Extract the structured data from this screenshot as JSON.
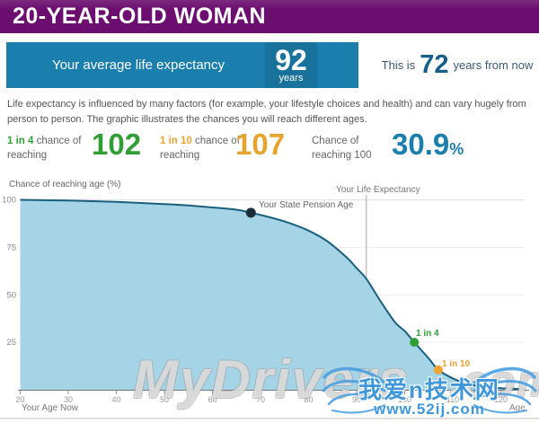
{
  "banner": {
    "title": "20-YEAR-OLD WOMAN"
  },
  "expectancy_bar": {
    "label": "Your average life expectancy",
    "value": "92",
    "unit": "years"
  },
  "from_now": {
    "prefix": "This is",
    "value": "72",
    "suffix": "years from now"
  },
  "intro": "Life expectancy is influenced by many factors (for example, your lifestyle choices and health) and can vary hugely from person to person. The graphic illustrates the chances you will reach different ages.",
  "stats": [
    {
      "odds": "1 in 4",
      "rest": "chance of reaching",
      "value": "102",
      "unit": "",
      "color": "#2f9e35"
    },
    {
      "odds": "1 in 10",
      "rest": "chance of reaching",
      "value": "107",
      "unit": "",
      "color": "#e5a32f"
    },
    {
      "odds": "",
      "rest": "Chance of reaching 100",
      "value": "30.9",
      "unit": "%",
      "color": "#1b7fad"
    }
  ],
  "chart_data": {
    "type": "area",
    "title": "Chance of reaching age (%)",
    "x_axis_label_left": "Your Age Now",
    "x_axis_label_right": "Age",
    "x_ticks": [
      20,
      30,
      40,
      50,
      60,
      70,
      80,
      90,
      100,
      110,
      120
    ],
    "y_ticks": [
      25,
      50,
      75,
      100
    ],
    "x_range": [
      20,
      125
    ],
    "y_range": [
      0,
      100
    ],
    "fill_color": "#a4d4e6",
    "line_color": "#19607e",
    "points": [
      [
        20,
        100
      ],
      [
        30,
        99.6
      ],
      [
        40,
        98.9
      ],
      [
        50,
        97.8
      ],
      [
        55,
        97
      ],
      [
        60,
        96
      ],
      [
        65,
        94.8
      ],
      [
        68,
        93.2
      ],
      [
        72,
        90.8
      ],
      [
        76,
        87.8
      ],
      [
        80,
        83.8
      ],
      [
        84,
        78
      ],
      [
        88,
        69.5
      ],
      [
        90,
        64
      ],
      [
        92,
        58.5
      ],
      [
        95,
        46.5
      ],
      [
        98,
        35.5
      ],
      [
        100,
        30.9
      ],
      [
        102,
        25
      ],
      [
        105,
        16.5
      ],
      [
        107,
        10.5
      ],
      [
        110,
        6
      ],
      [
        113,
        3.2
      ],
      [
        116,
        1.7
      ],
      [
        120,
        0.8
      ],
      [
        125,
        0.3
      ]
    ],
    "markers": [
      {
        "age": 68,
        "pct": 93.2,
        "r": 5.5,
        "color": "#1c2b3a",
        "label": "Your State Pension Age",
        "label_color": "#666666"
      },
      {
        "age": 102,
        "pct": 25,
        "r": 5,
        "color": "#2f9e35",
        "label": "1 in 4",
        "label_color": "#2f9e35"
      },
      {
        "age": 107,
        "pct": 10.5,
        "r": 5,
        "color": "#f0a532",
        "label": "1 in 10",
        "label_color": "#e5a32f"
      }
    ],
    "vline": {
      "age": 92,
      "label": "Your Life Expectancy"
    }
  },
  "watermarks": {
    "ghost_text": "MyDrivers",
    "ghost_suffix": ".com",
    "site_name": "我爱n技术网",
    "site_url": "www.52ij.com"
  }
}
